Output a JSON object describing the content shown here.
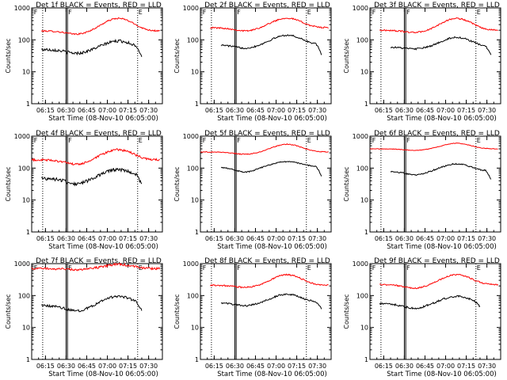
{
  "page": {
    "background": "#ffffff"
  },
  "common": {
    "xlabel": "Start Time (08-Nov-10 06:05:00)",
    "ylabel": "Counts/sec",
    "x_ticks": [
      "06:15",
      "06:30",
      "06:45",
      "07:00",
      "07:15",
      "07:30"
    ],
    "y_ticks": [
      "1",
      "10",
      "100",
      "1000"
    ],
    "xlim": [
      "06:05",
      "07:40"
    ],
    "ylim": [
      1,
      1000
    ],
    "y_scale": "log",
    "colors": {
      "events": "#000000",
      "lld": "#ff0000",
      "axes": "#000000"
    },
    "vertical_markers": {
      "dotted": [
        "06:13",
        "07:22"
      ],
      "solid_pair": [
        "06:30",
        "06:31"
      ],
      "flags": [
        "F",
        "E"
      ]
    }
  },
  "chart_data": [
    {
      "type": "line",
      "title": "Det 1f BLACK = Events, RED = LLD",
      "series": [
        {
          "color": "#ff0000",
          "x_start": "06:12",
          "x_end": "07:38",
          "shape": {
            "base": 190,
            "peak": 470,
            "peak_time": "07:08",
            "dip": 150,
            "noise": 0.05
          }
        },
        {
          "color": "#000000",
          "x_start": "06:12",
          "x_end": "07:25",
          "shape": {
            "base": 50,
            "peak": 92,
            "peak_time": "07:08",
            "dip": 38,
            "noise": 0.1,
            "tail_end": 30
          }
        }
      ]
    },
    {
      "type": "line",
      "title": "Det 2f BLACK = Events, RED = LLD",
      "series": [
        {
          "color": "#ff0000",
          "x_start": "06:12",
          "x_end": "07:38",
          "shape": {
            "base": 240,
            "peak": 480,
            "peak_time": "07:08",
            "dip": 190,
            "noise": 0.05
          }
        },
        {
          "color": "#000000",
          "x_start": "06:20",
          "x_end": "07:33",
          "shape": {
            "base": 70,
            "peak": 140,
            "peak_time": "07:08",
            "dip": 55,
            "noise": 0.06,
            "tail_end": 35
          }
        }
      ]
    },
    {
      "type": "line",
      "title": "Det 3f BLACK = Events, RED = LLD",
      "series": [
        {
          "color": "#ff0000",
          "x_start": "06:12",
          "x_end": "07:38",
          "shape": {
            "base": 200,
            "peak": 470,
            "peak_time": "07:08",
            "dip": 170,
            "noise": 0.05
          }
        },
        {
          "color": "#000000",
          "x_start": "06:20",
          "x_end": "07:33",
          "shape": {
            "base": 60,
            "peak": 120,
            "peak_time": "07:08",
            "dip": 52,
            "noise": 0.06,
            "tail_end": 32
          }
        }
      ]
    },
    {
      "type": "line",
      "title": "Det 4f BLACK = Events, RED = LLD",
      "series": [
        {
          "color": "#ff0000",
          "x_start": "06:05",
          "x_end": "07:38",
          "shape": {
            "base": 180,
            "peak": 380,
            "peak_time": "07:08",
            "dip": 130,
            "noise": 0.08
          }
        },
        {
          "color": "#000000",
          "x_start": "06:12",
          "x_end": "07:25",
          "shape": {
            "base": 48,
            "peak": 90,
            "peak_time": "07:08",
            "dip": 32,
            "noise": 0.12,
            "tail_end": 30
          }
        }
      ]
    },
    {
      "type": "line",
      "title": "Det 5f BLACK = Events, RED = LLD",
      "series": [
        {
          "color": "#ff0000",
          "x_start": "06:05",
          "x_end": "07:38",
          "shape": {
            "base": 320,
            "peak": 560,
            "peak_time": "07:08",
            "dip": 270,
            "noise": 0.03
          }
        },
        {
          "color": "#000000",
          "x_start": "06:20",
          "x_end": "07:33",
          "shape": {
            "base": 110,
            "peak": 160,
            "peak_time": "07:08",
            "dip": 75,
            "noise": 0.04,
            "tail_end": 55
          }
        }
      ]
    },
    {
      "type": "line",
      "title": "Det 6f BLACK = Events, RED = LLD",
      "series": [
        {
          "color": "#ff0000",
          "x_start": "06:05",
          "x_end": "07:38",
          "shape": {
            "base": 400,
            "peak": 600,
            "peak_time": "07:08",
            "dip": 360,
            "noise": 0.02
          }
        },
        {
          "color": "#000000",
          "x_start": "06:20",
          "x_end": "07:33",
          "shape": {
            "base": 80,
            "peak": 135,
            "peak_time": "07:08",
            "dip": 62,
            "noise": 0.05,
            "tail_end": 45
          }
        }
      ]
    },
    {
      "type": "line",
      "title": "Det 7f BLACK = Events, RED = LLD",
      "series": [
        {
          "color": "#ff0000",
          "x_start": "06:05",
          "x_end": "07:38",
          "shape": {
            "base": 700,
            "peak": 950,
            "peak_time": "07:08",
            "dip": 650,
            "noise": 0.08
          }
        },
        {
          "color": "#000000",
          "x_start": "06:12",
          "x_end": "07:25",
          "shape": {
            "base": 48,
            "peak": 95,
            "peak_time": "07:08",
            "dip": 33,
            "noise": 0.08,
            "tail_end": 35
          }
        }
      ]
    },
    {
      "type": "line",
      "title": "Det 8f BLACK = Events, RED = LLD",
      "series": [
        {
          "color": "#ff0000",
          "x_start": "06:12",
          "x_end": "07:38",
          "shape": {
            "base": 210,
            "peak": 450,
            "peak_time": "07:08",
            "dip": 180,
            "noise": 0.05
          }
        },
        {
          "color": "#000000",
          "x_start": "06:20",
          "x_end": "07:33",
          "shape": {
            "base": 60,
            "peak": 110,
            "peak_time": "07:08",
            "dip": 48,
            "noise": 0.06,
            "tail_end": 40
          }
        }
      ]
    },
    {
      "type": "line",
      "title": "Det 9f BLACK = Events, RED = LLD",
      "series": [
        {
          "color": "#ff0000",
          "x_start": "06:12",
          "x_end": "07:38",
          "shape": {
            "base": 220,
            "peak": 450,
            "peak_time": "07:08",
            "dip": 170,
            "noise": 0.05
          }
        },
        {
          "color": "#000000",
          "x_start": "06:12",
          "x_end": "07:25",
          "shape": {
            "base": 55,
            "peak": 95,
            "peak_time": "07:08",
            "dip": 40,
            "noise": 0.07,
            "tail_end": 45
          }
        }
      ]
    }
  ]
}
